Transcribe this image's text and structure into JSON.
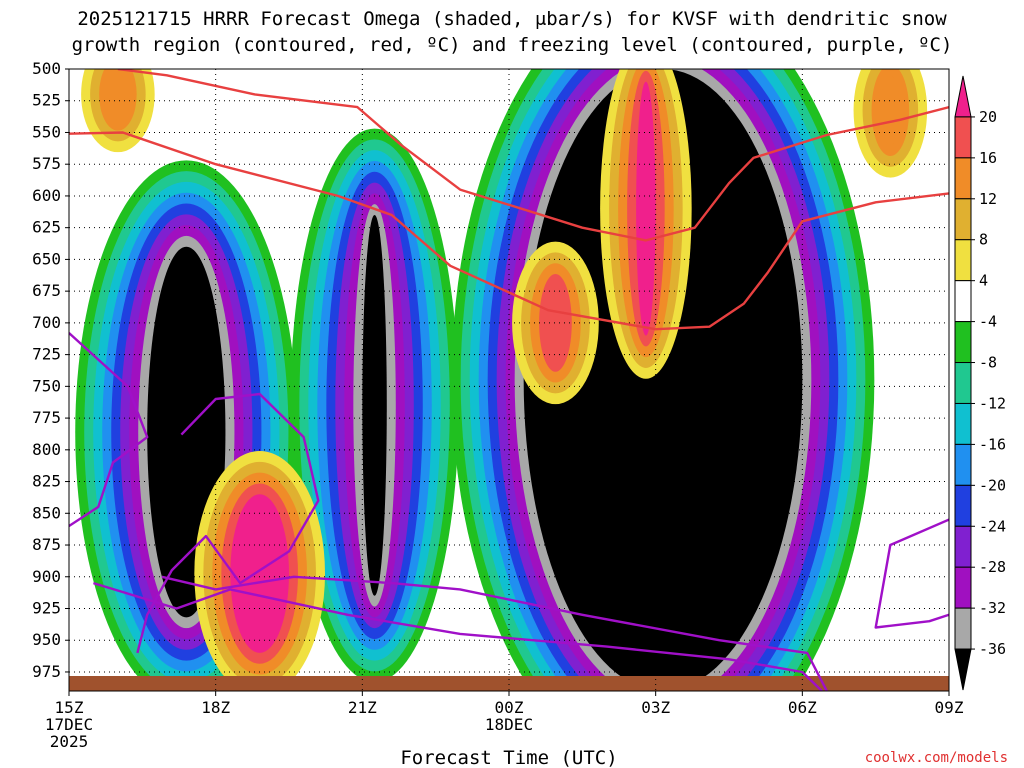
{
  "title_lines": [
    "2025121715 HRRR Forecast Omega (shaded, μbar/s) for KVSF with dendritic snow",
    "growth region (contoured, red, ºC) and freezing level (contoured, purple, ºC)"
  ],
  "watermark": "coolwx.com/models",
  "chart_data": {
    "type": "heatmap",
    "title": "2025121715 HRRR Forecast Omega (shaded, μbar/s) for KVSF with dendritic snow growth region (contoured, red, ºC) and freezing level (contoured, purple, ºC)",
    "xlabel": "Forecast Time (UTC)",
    "ylabel": "",
    "x_ticks": [
      {
        "h": 0,
        "lines": [
          "15Z",
          "17DEC",
          "2025"
        ]
      },
      {
        "h": 3,
        "lines": [
          "18Z"
        ]
      },
      {
        "h": 6,
        "lines": [
          "21Z"
        ]
      },
      {
        "h": 9,
        "lines": [
          "00Z",
          "18DEC"
        ]
      },
      {
        "h": 12,
        "lines": [
          "03Z"
        ]
      },
      {
        "h": 15,
        "lines": [
          "06Z"
        ]
      },
      {
        "h": 18,
        "lines": [
          "09Z"
        ]
      }
    ],
    "xlim_hours": [
      0,
      18
    ],
    "y_levels": [
      500,
      525,
      550,
      575,
      600,
      625,
      650,
      675,
      700,
      725,
      750,
      775,
      800,
      825,
      850,
      875,
      900,
      925,
      950,
      975
    ],
    "ylim": [
      500,
      990
    ],
    "grid": true,
    "colorbar": {
      "labels": [
        20,
        16,
        12,
        8,
        4,
        -4,
        -8,
        -12,
        -16,
        -20,
        -24,
        -28,
        -32,
        -36
      ],
      "colors": [
        "#f0208c",
        "#f05050",
        "#f08c28",
        "#e0b030",
        "#f0e040",
        "#ffffff",
        "#20c020",
        "#20c890",
        "#10c0d0",
        "#2090f0",
        "#2040e0",
        "#8020d0",
        "#a010c0",
        "#a8a8a8",
        "#000000"
      ]
    },
    "omega_regions": [
      {
        "level": "-36",
        "color": "#000000",
        "time_span_h": [
          1.6,
          3.2
        ],
        "pressure_span": [
          640,
          932
        ]
      },
      {
        "level": "-36",
        "color": "#000000",
        "time_span_h": [
          6.0,
          6.5
        ],
        "pressure_span": [
          615,
          915
        ]
      },
      {
        "level": "-36",
        "color": "#000000",
        "time_span_h": [
          9.3,
          15.0
        ],
        "pressure_span": [
          500,
          990
        ]
      },
      {
        "level": "20",
        "color": "#f0208c",
        "time_span_h": [
          3.3,
          4.5
        ],
        "pressure_span": [
          835,
          960
        ]
      },
      {
        "level": "20",
        "color": "#f0208c",
        "time_span_h": [
          11.6,
          12.0
        ],
        "pressure_span": [
          510,
          710
        ]
      },
      {
        "level": "16",
        "color": "#f05050",
        "time_span_h": [
          9.8,
          10.1
        ],
        "pressure_span": [
          670,
          730
        ]
      },
      {
        "level": "12",
        "color": "#f08c28",
        "time_span_h": [
          16.6,
          17.0
        ],
        "pressure_span": [
          505,
          560
        ]
      },
      {
        "level": "12",
        "color": "#f08c28",
        "time_span_h": [
          0.8,
          1.2
        ],
        "pressure_span": [
          500,
          540
        ]
      }
    ],
    "series": [
      {
        "name": "dendritic snow growth region",
        "color": "#e84040",
        "contours": [
          {
            "points": [
              [
                0,
                551
              ],
              [
                1.1,
                550
              ],
              [
                3,
                575
              ],
              [
                5.5,
                600
              ],
              [
                6.6,
                615
              ],
              [
                7.8,
                655
              ],
              [
                9.8,
                690
              ],
              [
                12,
                705
              ],
              [
                13.1,
                703
              ],
              [
                13.8,
                685
              ],
              [
                14.3,
                660
              ],
              [
                15.0,
                620
              ],
              [
                16.5,
                605
              ],
              [
                18,
                598
              ]
            ]
          },
          {
            "points": [
              [
                1.0,
                500
              ],
              [
                2.0,
                505
              ],
              [
                3.8,
                520
              ],
              [
                5.9,
                530
              ],
              [
                6.8,
                560
              ],
              [
                8.0,
                595
              ],
              [
                10.5,
                625
              ],
              [
                11.8,
                635
              ],
              [
                12.8,
                625
              ],
              [
                13.5,
                590
              ],
              [
                14.0,
                570
              ],
              [
                15.5,
                552
              ],
              [
                17,
                540
              ],
              [
                18,
                530
              ]
            ]
          }
        ]
      },
      {
        "name": "freezing level",
        "color": "#a010c8",
        "contours": [
          {
            "points": [
              [
                0,
                708
              ],
              [
                1.2,
                750
              ],
              [
                1.6,
                790
              ],
              [
                0.9,
                810
              ],
              [
                0.6,
                845
              ],
              [
                0,
                860
              ]
            ]
          },
          {
            "points": [
              [
                1.4,
                960
              ],
              [
                1.6,
                930
              ],
              [
                2.1,
                895
              ],
              [
                2.8,
                868
              ],
              [
                3.5,
                905
              ],
              [
                4.5,
                880
              ],
              [
                5.1,
                840
              ],
              [
                4.8,
                790
              ],
              [
                3.9,
                756
              ],
              [
                3.0,
                760
              ],
              [
                2.3,
                788
              ]
            ]
          },
          {
            "points": [
              [
                0.5,
                905
              ],
              [
                2.2,
                925
              ],
              [
                3.3,
                910
              ],
              [
                5.7,
                930
              ],
              [
                8.0,
                945
              ],
              [
                11.0,
                955
              ],
              [
                13.5,
                965
              ],
              [
                15.0,
                975
              ],
              [
                15.4,
                990
              ]
            ]
          },
          {
            "points": [
              [
                1.9,
                900
              ],
              [
                3.0,
                910
              ],
              [
                4.6,
                900
              ],
              [
                6.6,
                905
              ],
              [
                8.0,
                910
              ],
              [
                10.5,
                930
              ],
              [
                13.3,
                950
              ],
              [
                15.1,
                960
              ],
              [
                15.5,
                990
              ]
            ]
          },
          {
            "points": [
              [
                18,
                855
              ],
              [
                16.8,
                875
              ],
              [
                16.5,
                940
              ],
              [
                17.6,
                935
              ],
              [
                18,
                930
              ]
            ]
          }
        ]
      }
    ]
  }
}
